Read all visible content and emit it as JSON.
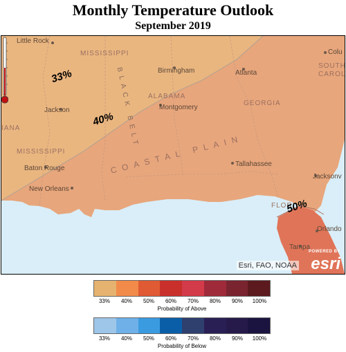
{
  "title": "Monthly Temperature Outlook",
  "subtitle": "September 2019",
  "places": [
    {
      "name": "Little Rock"
    },
    {
      "name": "Birmingham"
    },
    {
      "name": "Atlanta"
    },
    {
      "name": "Jackson"
    },
    {
      "name": "Montgomery"
    },
    {
      "name": "Baton Rouge"
    },
    {
      "name": "New Orleans"
    },
    {
      "name": "Tallahassee"
    },
    {
      "name": "Jacksonv"
    },
    {
      "name": "Orlando"
    },
    {
      "name": "Tampa"
    },
    {
      "name": "Colu"
    }
  ],
  "states": [
    "MISSISSIPPI",
    "ALABAMA",
    "GEORGIA",
    "MISSISSIPPI",
    "IANA",
    "SOUTH",
    "CAROL",
    "FLORI"
  ],
  "regions": {
    "coastal_plain": "COASTAL PLAIN",
    "black_belt": "BLACK BELT"
  },
  "contours": [
    {
      "label": "33%"
    },
    {
      "label": "40%"
    },
    {
      "label": "50%"
    }
  ],
  "attribution": "Esri, FAO, NOAA",
  "esri_logo": {
    "powered": "POWERED BY",
    "word": "esri"
  },
  "legend_above": {
    "title": "Probability of Above",
    "labels": [
      "33%",
      "40%",
      "50%",
      "60%",
      "70%",
      "80%",
      "90%",
      "100%"
    ],
    "colors": [
      "#e5b36f",
      "#f28b4a",
      "#e05a33",
      "#c9302c",
      "#d33a4a",
      "#9e2a3a",
      "#7a2430",
      "#5c1a1e"
    ]
  },
  "legend_below": {
    "title": "Probability of Below",
    "labels": [
      "33%",
      "40%",
      "50%",
      "60%",
      "70%",
      "80%",
      "90%",
      "100%"
    ],
    "colors": [
      "#9dc6e8",
      "#6fb0e8",
      "#3a9be0",
      "#0a5ea8",
      "#2f3f6e",
      "#2a1f55",
      "#261a4a",
      "#1c1440"
    ]
  }
}
